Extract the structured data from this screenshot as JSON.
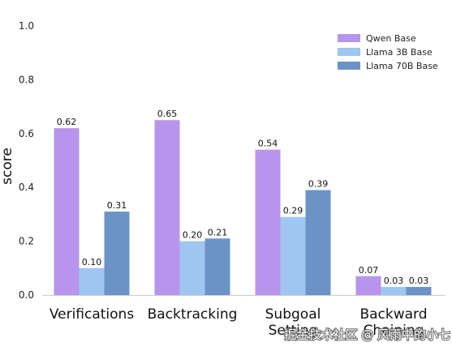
{
  "chart_data": {
    "type": "bar",
    "categories": [
      "Verifications",
      "Backtracking",
      "Subgoal Setting",
      "Backward Chaining"
    ],
    "series": [
      {
        "name": "Qwen Base",
        "values": [
          0.62,
          0.65,
          0.54,
          0.07
        ],
        "color": "#b795ec"
      },
      {
        "name": "Llama 3B Base",
        "values": [
          0.1,
          0.2,
          0.29,
          0.03
        ],
        "color": "#9ec6f0"
      },
      {
        "name": "Llama 70B Base",
        "values": [
          0.31,
          0.21,
          0.39,
          0.03
        ],
        "color": "#6b93c6"
      }
    ],
    "ylabel": "score",
    "ylim": [
      0,
      1.0
    ],
    "yticks": [
      0.0,
      0.2,
      0.4,
      0.6,
      0.8,
      1.0
    ],
    "grid": false,
    "legend_position": "top-right"
  },
  "watermark": "掘金技术社区 @ 风雨中的小七"
}
